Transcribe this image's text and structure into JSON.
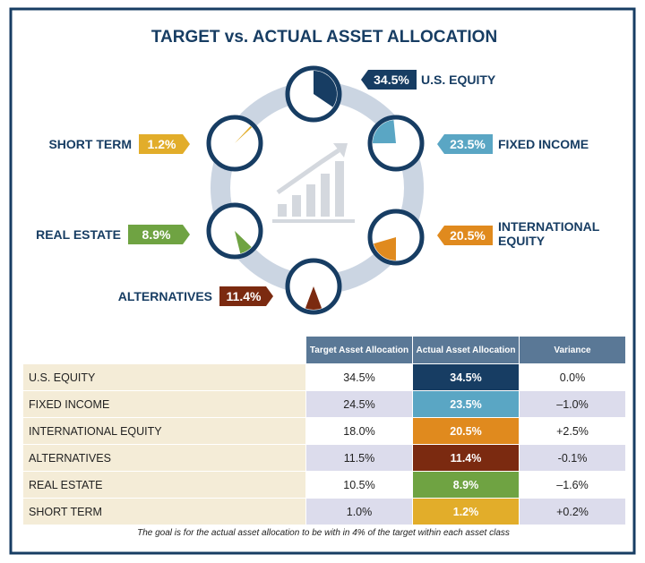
{
  "title": "TARGET vs. ACTUAL ASSET ALLOCATION",
  "gauges": [
    {
      "label": "U.S. EQUITY",
      "value": 34.5,
      "value_label": "34.5%",
      "color": "#173d63"
    },
    {
      "label": "FIXED INCOME",
      "value": 23.5,
      "value_label": "23.5%",
      "color": "#5aa6c4"
    },
    {
      "label": "INTERNATIONAL EQUITY",
      "value": 20.5,
      "value_label": "20.5%",
      "color": "#e08a1e"
    },
    {
      "label": "ALTERNATIVES",
      "value": 11.4,
      "value_label": "11.4%",
      "color": "#7b2a10"
    },
    {
      "label": "REAL ESTATE",
      "value": 8.9,
      "value_label": "8.9%",
      "color": "#6fa342"
    },
    {
      "label": "SHORT TERM",
      "value": 1.2,
      "value_label": "1.2%",
      "color": "#e2ad2a"
    }
  ],
  "table": {
    "header": [
      "Target Asset Allocation",
      "Actual Asset Allocation",
      "Variance"
    ],
    "rows": [
      [
        "U.S. EQUITY",
        "34.5%",
        "34.5%",
        "0.0%"
      ],
      [
        "FIXED INCOME",
        "24.5%",
        "23.5%",
        "–1.0%"
      ],
      [
        "INTERNATIONAL EQUITY",
        "18.0%",
        "20.5%",
        "+2.5%"
      ],
      [
        "ALTERNATIVES",
        "11.5%",
        "11.4%",
        "-0.1%"
      ],
      [
        "REAL ESTATE",
        "10.5%",
        "8.9%",
        "–1.6%"
      ],
      [
        "SHORT TERM",
        "1.0%",
        "1.2%",
        "+0.2%"
      ]
    ]
  },
  "footnote": "The goal is for the actual asset allocation to be with in 4% of the target within each asset class"
}
